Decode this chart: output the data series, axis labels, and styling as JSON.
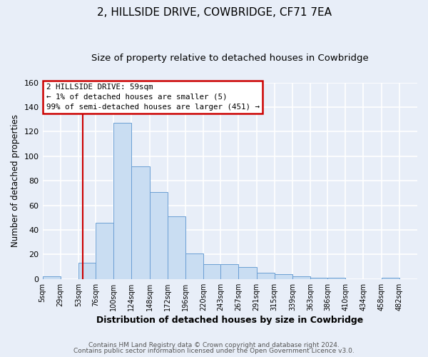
{
  "title": "2, HILLSIDE DRIVE, COWBRIDGE, CF71 7EA",
  "subtitle": "Size of property relative to detached houses in Cowbridge",
  "xlabel": "Distribution of detached houses by size in Cowbridge",
  "ylabel": "Number of detached properties",
  "bin_labels": [
    "5sqm",
    "29sqm",
    "53sqm",
    "76sqm",
    "100sqm",
    "124sqm",
    "148sqm",
    "172sqm",
    "196sqm",
    "220sqm",
    "243sqm",
    "267sqm",
    "291sqm",
    "315sqm",
    "339sqm",
    "363sqm",
    "386sqm",
    "410sqm",
    "434sqm",
    "458sqm",
    "482sqm"
  ],
  "bin_edges": [
    5,
    29,
    53,
    76,
    100,
    124,
    148,
    172,
    196,
    220,
    243,
    267,
    291,
    315,
    339,
    363,
    386,
    410,
    434,
    458,
    482
  ],
  "bar_heights": [
    2,
    0,
    13,
    46,
    127,
    92,
    71,
    51,
    21,
    12,
    12,
    10,
    5,
    4,
    2,
    1,
    1,
    0,
    0,
    1
  ],
  "bar_color": "#c9ddf2",
  "bar_edge_color": "#6b9fd4",
  "vline_x": 59,
  "vline_color": "#cc0000",
  "ylim": [
    0,
    160
  ],
  "yticks": [
    0,
    20,
    40,
    60,
    80,
    100,
    120,
    140,
    160
  ],
  "annotation_title": "2 HILLSIDE DRIVE: 59sqm",
  "annotation_line1": "← 1% of detached houses are smaller (5)",
  "annotation_line2": "99% of semi-detached houses are larger (451) →",
  "annotation_box_color": "#ffffff",
  "annotation_box_edge": "#cc0000",
  "footer1": "Contains HM Land Registry data © Crown copyright and database right 2024.",
  "footer2": "Contains public sector information licensed under the Open Government Licence v3.0.",
  "background_color": "#e8eef8",
  "plot_bg_color": "#e8eef8",
  "grid_color": "#ffffff",
  "title_fontsize": 11,
  "subtitle_fontsize": 9.5,
  "title_fontweight": "normal"
}
